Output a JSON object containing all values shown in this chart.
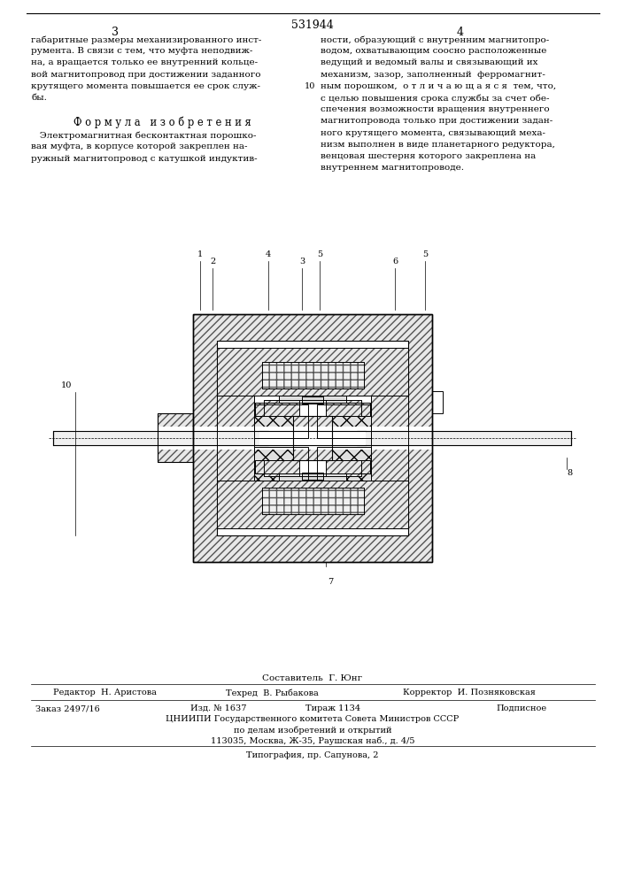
{
  "patent_number": "531944",
  "page_left": "3",
  "page_right": "4",
  "left_column_text": [
    "габаритные размеры механизированного инст-",
    "румента. В связи с тем, что муфта неподвиж-",
    "на, а вращается только ее внутренний кольце-",
    "вой магнитопровод при достижении заданного",
    "крутящего момента повышается ее срок служ-",
    "бы."
  ],
  "formula_header": "Ф о р м у л а   и з о б р е т е н и я",
  "formula_text": [
    "   Электромагнитная бесконтактная порошко-",
    "вая муфта, в корпусе которой закреплен на-",
    "ружный магнитопровод с катушкой индуктив-"
  ],
  "right_column_text": [
    "ности, образующий с внутренним магнитопро-",
    "водом, охватывающим соосно расположенные",
    "ведущий и ведомый валы и связывающий их",
    "механизм, зазор, заполненный  ферромагнит-",
    "ным порошком,  о т л и ч а ю щ а я с я  тем, что,",
    "с целью повышения срока службы за счет обе-",
    "спечения возможности вращения внутреннего",
    "магнитопровода только при достижении задан-",
    "ного крутящего момента, связывающий меха-",
    "низм выполнен в виде планетарного редуктора,",
    "венцовая шестерня которого закреплена на",
    "внутреннем магнитопроводе."
  ],
  "line_number": "10",
  "composer": "Составитель  Г. Юнг",
  "editor": "Редактор  Н. Аристова",
  "tech": "Техред  В. Рыбакова",
  "corrector": "Корректор  И. Позняковская",
  "order": "Заказ 2497/16",
  "izd": "Изд. № 1637",
  "tirazh": "Тираж 1134",
  "podpisnoe": "Подписное",
  "org_line1": "ЦНИИПИ Государственного комитета Совета Министров СССР",
  "org_line2": "по делам изобретений и открытий",
  "org_line3": "113035, Москва, Ж-35, Раушская наб., д. 4/5",
  "print_line": "Типография, пр. Сапунова, 2"
}
